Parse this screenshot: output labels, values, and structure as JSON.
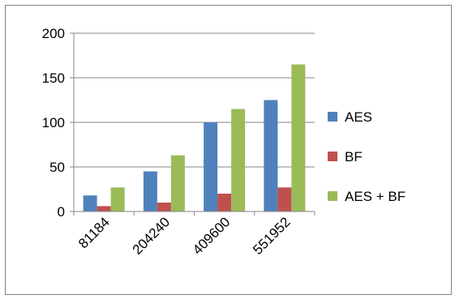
{
  "chart_data": {
    "type": "bar",
    "categories": [
      "81184",
      "204240",
      "409600",
      "551952"
    ],
    "series": [
      {
        "name": "AES",
        "color": "#4f81bd",
        "values": [
          18,
          45,
          100,
          125
        ]
      },
      {
        "name": "BF",
        "color": "#c0504d",
        "values": [
          6,
          10,
          20,
          27
        ]
      },
      {
        "name": "AES + BF",
        "color": "#9bbb59",
        "values": [
          27,
          63,
          115,
          165
        ]
      }
    ],
    "title": "",
    "xlabel": "",
    "ylabel": "",
    "ylim": [
      0,
      200
    ],
    "yticks": [
      "0",
      "50",
      "100",
      "150",
      "200"
    ],
    "grid": true,
    "legend_position": "right"
  }
}
